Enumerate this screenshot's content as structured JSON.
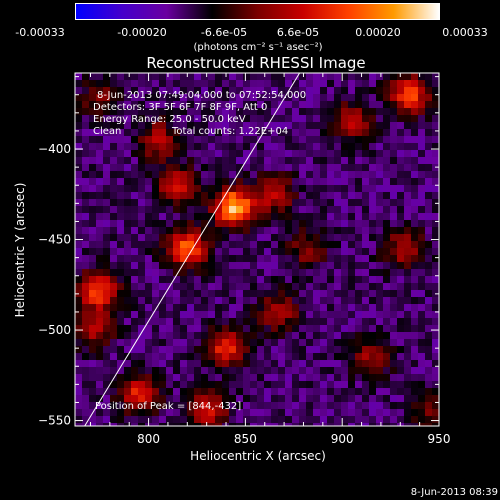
{
  "colorbar": {
    "ticks": [
      "-0.00033",
      "-0.00020",
      "-6.6e-05",
      "6.6e-05",
      "0.00020",
      "0.00033"
    ],
    "unit_label": "(photons cm⁻² s⁻¹ asec⁻²)",
    "colors": [
      "#0000ff",
      "#4400cc",
      "#6a00a0",
      "#000000",
      "#7a0000",
      "#c80000",
      "#ff4000",
      "#ff9a00",
      "#ffffff"
    ]
  },
  "chart_data": {
    "type": "heatmap",
    "title": "Reconstructed RHESSI Image",
    "xlabel": "Heliocentric X (arcsec)",
    "ylabel": "Heliocentric Y (arcsec)",
    "xlim": [
      762,
      950
    ],
    "ylim": [
      -553,
      -358
    ],
    "xticks": [
      800,
      850,
      900,
      950
    ],
    "yticks": [
      -400,
      -450,
      -500,
      -550
    ],
    "xtick_labels": [
      "800",
      "850",
      "900",
      "950"
    ],
    "ytick_labels": [
      "−400",
      "−450",
      "−500",
      "−550"
    ],
    "annotations": {
      "time_range": "8-Jun-2013 07:49:04.000 to 07:52:54.000",
      "detectors": "Detectors: 3F 5F 6F 7F 8F 9F, Att 0",
      "energy": "Energy Range: 25.0 - 50.0 keV",
      "method": "Clean",
      "total_counts": "Total counts: 1.22E+04",
      "peak": "Position of Peak = [844,-432]"
    },
    "peak": [
      844,
      -432
    ],
    "limb_line": [
      [
        767,
        -553
      ],
      [
        878,
        -358
      ]
    ],
    "sources": [
      {
        "x": 844,
        "y": -432,
        "intensity": 1.0
      },
      {
        "x": 820,
        "y": -455,
        "intensity": 0.8
      },
      {
        "x": 774,
        "y": -478,
        "intensity": 0.75
      },
      {
        "x": 815,
        "y": -420,
        "intensity": 0.55
      },
      {
        "x": 805,
        "y": -395,
        "intensity": 0.45
      },
      {
        "x": 865,
        "y": -425,
        "intensity": 0.5
      },
      {
        "x": 867,
        "y": -490,
        "intensity": 0.45
      },
      {
        "x": 840,
        "y": -510,
        "intensity": 0.65
      },
      {
        "x": 795,
        "y": -535,
        "intensity": 0.6
      },
      {
        "x": 830,
        "y": -545,
        "intensity": 0.55
      },
      {
        "x": 772,
        "y": -500,
        "intensity": 0.45
      },
      {
        "x": 935,
        "y": -370,
        "intensity": 0.7
      },
      {
        "x": 905,
        "y": -385,
        "intensity": 0.45
      },
      {
        "x": 932,
        "y": -455,
        "intensity": 0.45
      },
      {
        "x": 915,
        "y": -515,
        "intensity": 0.4
      },
      {
        "x": 882,
        "y": -455,
        "intensity": 0.35
      },
      {
        "x": 775,
        "y": -372,
        "intensity": 0.35
      },
      {
        "x": 945,
        "y": -545,
        "intensity": 0.3
      }
    ]
  },
  "footer_timestamp": "8-Jun-2013 08:39"
}
